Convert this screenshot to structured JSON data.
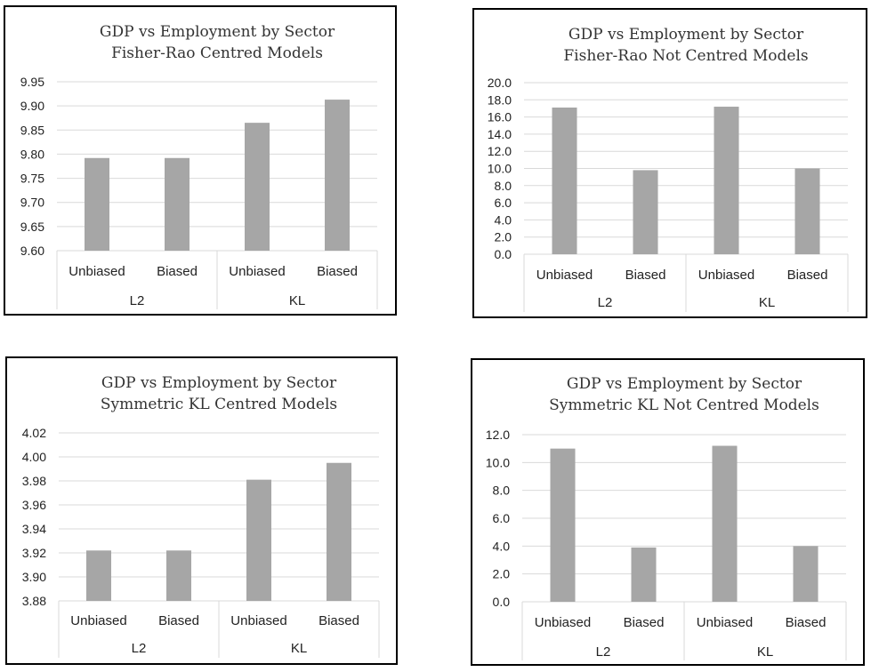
{
  "chart_data": [
    {
      "type": "bar",
      "title": [
        "GDP vs Employment by Sector",
        "Fisher-Rao Centred Models"
      ],
      "categories": [
        "Unbiased",
        "Biased",
        "Unbiased",
        "Biased"
      ],
      "groups": [
        "L2",
        "KL"
      ],
      "values": [
        9.792,
        9.792,
        9.865,
        9.913
      ],
      "ylim": [
        9.6,
        9.95
      ],
      "yticks": [
        "9.60",
        "9.65",
        "9.70",
        "9.75",
        "9.80",
        "9.85",
        "9.90",
        "9.95"
      ],
      "grid": true
    },
    {
      "type": "bar",
      "title": [
        "GDP vs Employment by Sector",
        "Fisher-Rao Not Centred Models"
      ],
      "categories": [
        "Unbiased",
        "Biased",
        "Unbiased",
        "Biased"
      ],
      "groups": [
        "L2",
        "KL"
      ],
      "values": [
        17.1,
        9.8,
        17.2,
        10.0
      ],
      "ylim": [
        0,
        20
      ],
      "yticks": [
        "0.0",
        "2.0",
        "4.0",
        "6.0",
        "8.0",
        "10.0",
        "12.0",
        "14.0",
        "16.0",
        "18.0",
        "20.0"
      ],
      "grid": true
    },
    {
      "type": "bar",
      "title": [
        "GDP vs Employment by Sector",
        "Symmetric KL Centred Models"
      ],
      "categories": [
        "Unbiased",
        "Biased",
        "Unbiased",
        "Biased"
      ],
      "groups": [
        "L2",
        "KL"
      ],
      "values": [
        3.922,
        3.922,
        3.981,
        3.995
      ],
      "ylim": [
        3.88,
        4.02
      ],
      "yticks": [
        "3.88",
        "3.90",
        "3.92",
        "3.94",
        "3.96",
        "3.98",
        "4.00",
        "4.02"
      ],
      "grid": true
    },
    {
      "type": "bar",
      "title": [
        "GDP vs Employment by Sector",
        "Symmetric KL Not Centred Models"
      ],
      "categories": [
        "Unbiased",
        "Biased",
        "Unbiased",
        "Biased"
      ],
      "groups": [
        "L2",
        "KL"
      ],
      "values": [
        11.0,
        3.9,
        11.2,
        4.0
      ],
      "ylim": [
        0,
        12
      ],
      "yticks": [
        "0.0",
        "2.0",
        "4.0",
        "6.0",
        "8.0",
        "10.0",
        "12.0"
      ],
      "grid": true
    }
  ],
  "colors": {
    "bar": "#a6a6a6",
    "grid": "#d9d9d9",
    "border": "#000000"
  }
}
